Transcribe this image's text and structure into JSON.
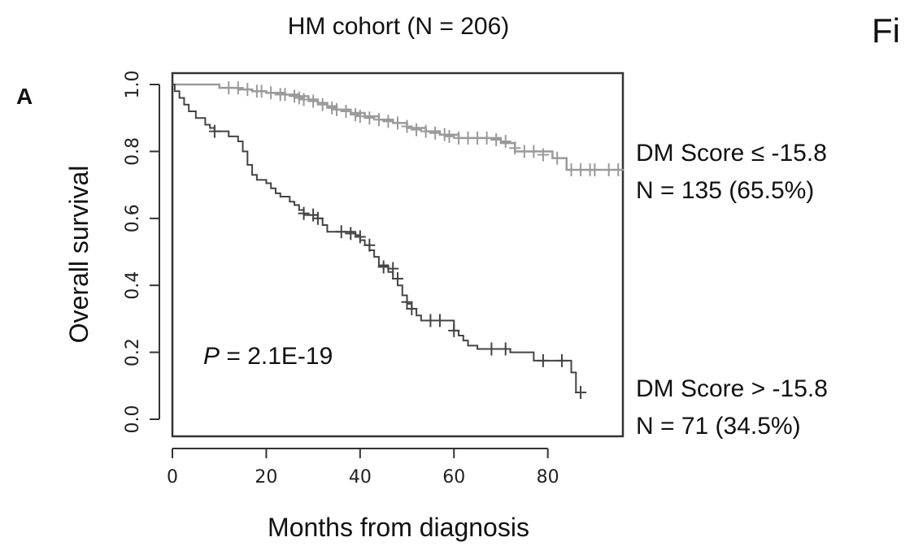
{
  "figure": {
    "panel_label": "A",
    "corner_text": "Fi"
  },
  "chart_data": {
    "type": "line",
    "subtype": "kaplan-meier",
    "title": "HM cohort (N = 206)",
    "xlabel": "Months from diagnosis",
    "ylabel": "Overall survival",
    "xlim": [
      0,
      96
    ],
    "ylim": [
      0,
      1
    ],
    "xticks": [
      0,
      20,
      40,
      60,
      80
    ],
    "yticks": [
      0.0,
      0.2,
      0.4,
      0.6,
      0.8,
      1.0
    ],
    "xtick_labels": [
      "0",
      "20",
      "40",
      "60",
      "80"
    ],
    "ytick_labels": [
      "0.0",
      "0.2",
      "0.4",
      "0.6",
      "0.8",
      "1.0"
    ],
    "annotation": {
      "prefix": "P",
      "text": " = 2.1E-19"
    },
    "colors": {
      "low_risk": "#9a9a9a",
      "high_risk": "#444444"
    },
    "series": [
      {
        "label_line1": "DM Score ≤ -15.8",
        "label_line2": "N = 135 (65.5%)",
        "color_key": "low_risk",
        "steps": [
          [
            0,
            1.0
          ],
          [
            10,
            0.99
          ],
          [
            14,
            0.985
          ],
          [
            17,
            0.98
          ],
          [
            20,
            0.975
          ],
          [
            24,
            0.97
          ],
          [
            27,
            0.965
          ],
          [
            29,
            0.955
          ],
          [
            31,
            0.945
          ],
          [
            33,
            0.935
          ],
          [
            35,
            0.925
          ],
          [
            38,
            0.915
          ],
          [
            41,
            0.905
          ],
          [
            44,
            0.895
          ],
          [
            47,
            0.885
          ],
          [
            50,
            0.87
          ],
          [
            54,
            0.86
          ],
          [
            57,
            0.85
          ],
          [
            61,
            0.84
          ],
          [
            66,
            0.84
          ],
          [
            70,
            0.825
          ],
          [
            73,
            0.8
          ],
          [
            76,
            0.8
          ],
          [
            81,
            0.78
          ],
          [
            84,
            0.745
          ],
          [
            96,
            0.745
          ]
        ],
        "censored": [
          [
            12,
            0.99
          ],
          [
            14,
            0.99
          ],
          [
            16,
            0.985
          ],
          [
            18,
            0.98
          ],
          [
            19,
            0.98
          ],
          [
            21,
            0.975
          ],
          [
            23,
            0.97
          ],
          [
            24,
            0.97
          ],
          [
            26,
            0.965
          ],
          [
            27,
            0.96
          ],
          [
            28,
            0.955
          ],
          [
            30,
            0.95
          ],
          [
            32,
            0.94
          ],
          [
            34,
            0.93
          ],
          [
            35,
            0.925
          ],
          [
            37,
            0.92
          ],
          [
            39,
            0.91
          ],
          [
            40,
            0.905
          ],
          [
            42,
            0.9
          ],
          [
            44,
            0.895
          ],
          [
            46,
            0.89
          ],
          [
            48,
            0.885
          ],
          [
            50,
            0.875
          ],
          [
            52,
            0.865
          ],
          [
            54,
            0.86
          ],
          [
            56,
            0.855
          ],
          [
            58,
            0.85
          ],
          [
            59,
            0.845
          ],
          [
            61,
            0.84
          ],
          [
            63,
            0.84
          ],
          [
            65,
            0.84
          ],
          [
            67,
            0.84
          ],
          [
            69,
            0.835
          ],
          [
            71,
            0.83
          ],
          [
            73,
            0.81
          ],
          [
            75,
            0.8
          ],
          [
            77,
            0.8
          ],
          [
            79,
            0.79
          ],
          [
            82,
            0.78
          ],
          [
            85,
            0.745
          ],
          [
            87,
            0.745
          ],
          [
            89,
            0.745
          ],
          [
            90,
            0.745
          ],
          [
            93,
            0.745
          ],
          [
            95,
            0.745
          ]
        ]
      },
      {
        "label_line1": "DM Score > -15.8",
        "label_line2": "N = 71 (34.5%)",
        "color_key": "high_risk",
        "steps": [
          [
            0,
            1.0
          ],
          [
            0.5,
            0.98
          ],
          [
            1.5,
            0.96
          ],
          [
            2.5,
            0.94
          ],
          [
            3.5,
            0.92
          ],
          [
            5,
            0.9
          ],
          [
            7,
            0.88
          ],
          [
            8,
            0.87
          ],
          [
            9,
            0.86
          ],
          [
            12,
            0.845
          ],
          [
            14,
            0.83
          ],
          [
            15,
            0.8
          ],
          [
            16,
            0.76
          ],
          [
            17,
            0.73
          ],
          [
            18,
            0.715
          ],
          [
            20,
            0.705
          ],
          [
            21,
            0.69
          ],
          [
            22,
            0.675
          ],
          [
            23,
            0.665
          ],
          [
            25,
            0.65
          ],
          [
            26,
            0.64
          ],
          [
            27,
            0.625
          ],
          [
            28,
            0.61
          ],
          [
            31,
            0.6
          ],
          [
            32,
            0.58
          ],
          [
            33,
            0.56
          ],
          [
            39,
            0.55
          ],
          [
            40,
            0.535
          ],
          [
            41,
            0.52
          ],
          [
            42,
            0.505
          ],
          [
            43,
            0.485
          ],
          [
            44,
            0.46
          ],
          [
            46,
            0.44
          ],
          [
            47,
            0.42
          ],
          [
            48,
            0.4
          ],
          [
            49,
            0.37
          ],
          [
            50,
            0.345
          ],
          [
            51,
            0.33
          ],
          [
            52,
            0.31
          ],
          [
            53,
            0.295
          ],
          [
            60,
            0.265
          ],
          [
            61,
            0.25
          ],
          [
            62,
            0.235
          ],
          [
            63,
            0.22
          ],
          [
            65,
            0.21
          ],
          [
            72,
            0.2
          ],
          [
            77,
            0.175
          ],
          [
            84,
            0.175
          ],
          [
            85,
            0.14
          ],
          [
            86,
            0.08
          ],
          [
            87,
            0.08
          ]
        ],
        "censored": [
          [
            9,
            0.86
          ],
          [
            28,
            0.615
          ],
          [
            30,
            0.61
          ],
          [
            31,
            0.6
          ],
          [
            36,
            0.56
          ],
          [
            38,
            0.555
          ],
          [
            40,
            0.545
          ],
          [
            42,
            0.52
          ],
          [
            45,
            0.455
          ],
          [
            47,
            0.45
          ],
          [
            48,
            0.42
          ],
          [
            50,
            0.35
          ],
          [
            51,
            0.33
          ],
          [
            55,
            0.295
          ],
          [
            57,
            0.295
          ],
          [
            60,
            0.265
          ],
          [
            68,
            0.21
          ],
          [
            71,
            0.21
          ],
          [
            79,
            0.175
          ],
          [
            83,
            0.175
          ],
          [
            87,
            0.08
          ]
        ]
      }
    ]
  }
}
